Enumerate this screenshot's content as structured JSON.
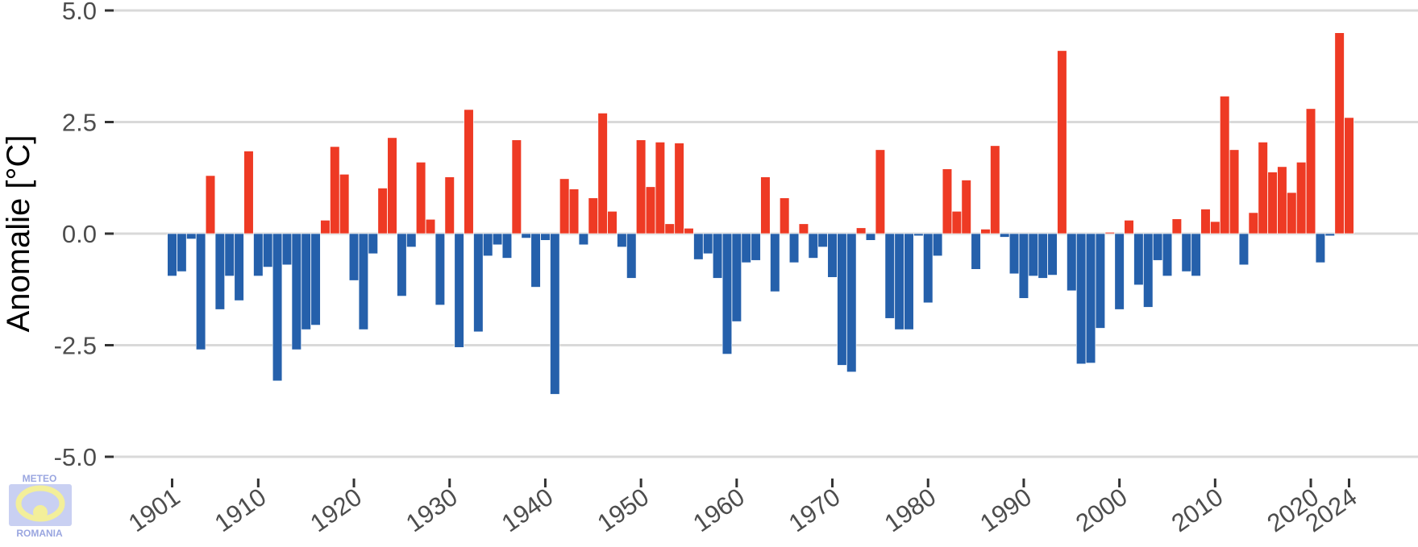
{
  "chart_data": {
    "type": "bar",
    "ylabel": "Anomalie [°C]",
    "xlabel": "",
    "title": "",
    "ylim": [
      -5.5,
      5.2
    ],
    "yticks": [
      {
        "value": 5.0,
        "label": "5.0"
      },
      {
        "value": 2.5,
        "label": "2.5"
      },
      {
        "value": 0.0,
        "label": "0.0"
      },
      {
        "value": -2.5,
        "label": "-2.5"
      },
      {
        "value": -5.0,
        "label": "-5.0"
      }
    ],
    "xticks": [
      {
        "value": 1901,
        "label": "1901"
      },
      {
        "value": 1910,
        "label": "1910"
      },
      {
        "value": 1920,
        "label": "1920"
      },
      {
        "value": 1930,
        "label": "1930"
      },
      {
        "value": 1940,
        "label": "1940"
      },
      {
        "value": 1950,
        "label": "1950"
      },
      {
        "value": 1960,
        "label": "1960"
      },
      {
        "value": 1970,
        "label": "1970"
      },
      {
        "value": 1980,
        "label": "1980"
      },
      {
        "value": 1990,
        "label": "1990"
      },
      {
        "value": 2000,
        "label": "2000"
      },
      {
        "value": 2010,
        "label": "2010"
      },
      {
        "value": 2020,
        "label": "2020"
      },
      {
        "value": 2024,
        "label": "2024"
      }
    ],
    "grid": true,
    "colors": {
      "positive": "#ee3a24",
      "negative": "#2560ab",
      "grid": "#d9d9d9",
      "axis": "#333333"
    },
    "x_start": 1901,
    "values": [
      -0.95,
      -0.85,
      -0.12,
      -2.6,
      1.3,
      -1.7,
      -0.95,
      -1.5,
      1.85,
      -0.95,
      -0.75,
      -3.3,
      -0.7,
      -2.6,
      -2.15,
      -2.05,
      0.3,
      1.95,
      1.33,
      -1.05,
      -2.15,
      -0.45,
      1.02,
      2.15,
      -1.4,
      -0.3,
      1.6,
      0.32,
      -1.6,
      1.27,
      -2.55,
      2.78,
      -2.2,
      -0.5,
      -0.25,
      -0.55,
      2.1,
      -0.1,
      -1.2,
      -0.15,
      -3.6,
      1.23,
      1.0,
      -0.25,
      0.8,
      2.7,
      0.5,
      -0.3,
      -1.0,
      2.1,
      1.05,
      2.05,
      0.22,
      2.03,
      0.12,
      -0.58,
      -0.45,
      -1.0,
      -2.7,
      -1.97,
      -0.65,
      -0.6,
      1.27,
      -1.3,
      0.8,
      -0.65,
      0.22,
      -0.55,
      -0.3,
      -0.98,
      -2.95,
      -3.1,
      0.13,
      -0.15,
      1.88,
      -1.9,
      -2.15,
      -2.15,
      -0.05,
      -1.55,
      -0.5,
      1.45,
      0.5,
      1.2,
      -0.8,
      0.1,
      1.97,
      -0.08,
      -0.9,
      -1.45,
      -0.95,
      -1.0,
      -0.93,
      4.1,
      -1.28,
      -2.92,
      -2.9,
      -2.12,
      0.03,
      -1.7,
      0.3,
      -1.15,
      -1.65,
      -0.6,
      -0.95,
      0.33,
      -0.85,
      -0.95,
      0.55,
      0.27,
      3.08,
      1.88,
      -0.7,
      0.47,
      2.05,
      1.38,
      1.5,
      0.92,
      1.6,
      2.8,
      -0.65,
      -0.05,
      4.5,
      2.6
    ]
  },
  "logo": {
    "line1": "METEO",
    "line2": "ROMANIA"
  }
}
